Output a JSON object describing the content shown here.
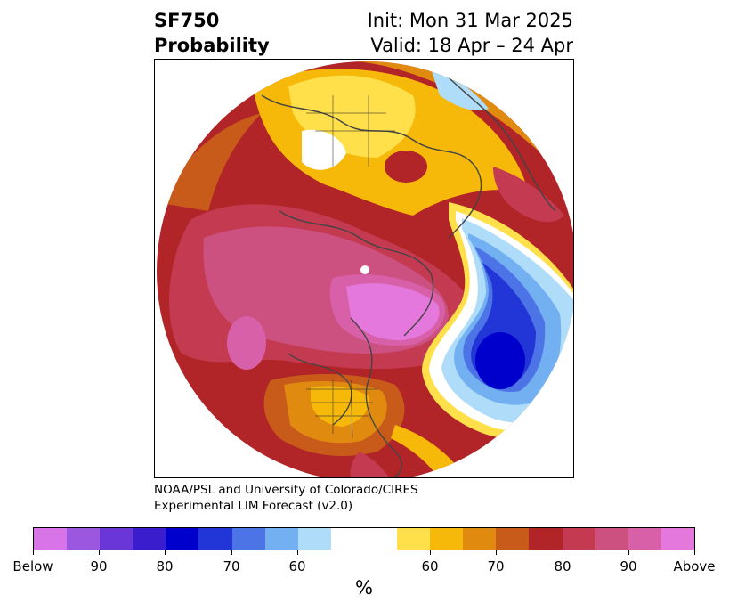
{
  "header": {
    "title_line1": "SF750",
    "title_line2": "Probability",
    "init_text": "Init: Mon 31 Mar 2025",
    "valid_text": "Valid: 18 Apr – 24 Apr"
  },
  "credit": {
    "line1": "NOAA/PSL and University of Colorado/CIRES",
    "line2": "Experimental LIM Forecast (v2.0)"
  },
  "colorbar": {
    "unit": "%",
    "colors": [
      "#d873e8",
      "#9b57e0",
      "#6b36d8",
      "#3a1ecd",
      "#0000cc",
      "#2236d8",
      "#4d74e6",
      "#72b0f2",
      "#aedcf9",
      "#ffffff",
      "#ffffff",
      "#ffe04a",
      "#f6b90a",
      "#e08a10",
      "#c85a1a",
      "#b12428",
      "#c43a50",
      "#cc5080",
      "#d860a8",
      "#e478dc"
    ],
    "tick_labels": [
      "Below",
      "90",
      "80",
      "70",
      "60",
      "60",
      "70",
      "80",
      "90",
      "Above"
    ]
  },
  "map": {
    "projection": "polar stereographic, North Pole centered",
    "features": [
      {
        "name": "pacific-below-normal-center",
        "description": "deep blue minimum over the North Pacific"
      },
      {
        "name": "canada-above-normal-center",
        "description": "magenta maximum near the pole / Arctic"
      },
      {
        "name": "eurasia-above-normal",
        "description": "warm colors over Eurasia with red maximum"
      }
    ]
  }
}
